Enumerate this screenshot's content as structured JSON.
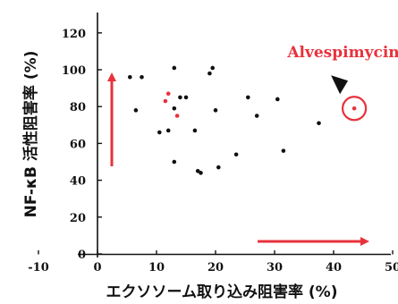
{
  "chart_data": {
    "type": "scatter",
    "xlabel": "エクソソーム取り込み阻害率 (%)",
    "ylabel": "NF-κB 活性阻害率 (%)",
    "xlim": [
      -15,
      50
    ],
    "ylim": [
      -5,
      130
    ],
    "xticks": [
      -10,
      0,
      10,
      20,
      30,
      40,
      50
    ],
    "yticks": [
      0,
      20,
      40,
      60,
      80,
      100,
      120
    ],
    "grid": false,
    "colors": {
      "black": "#111111",
      "red": "#e8323c"
    },
    "series": [
      {
        "color": "black",
        "points": [
          [
            5.5,
            96
          ],
          [
            6.5,
            78
          ],
          [
            7.5,
            96
          ],
          [
            10.5,
            66
          ],
          [
            12,
            67
          ],
          [
            13,
            101
          ],
          [
            13,
            79
          ],
          [
            13,
            50
          ],
          [
            14,
            85
          ],
          [
            15,
            85
          ],
          [
            16.5,
            67
          ],
          [
            17,
            45
          ],
          [
            17.5,
            44
          ],
          [
            19,
            98
          ],
          [
            19.5,
            101
          ],
          [
            20,
            78
          ],
          [
            20.5,
            47
          ],
          [
            23.5,
            54
          ],
          [
            25.5,
            85
          ],
          [
            27,
            75
          ],
          [
            30.5,
            84
          ],
          [
            31.5,
            56
          ],
          [
            37.5,
            71
          ]
        ]
      },
      {
        "color": "red",
        "points": [
          [
            11.5,
            83
          ],
          [
            12,
            87
          ],
          [
            13.5,
            75
          ]
        ]
      },
      {
        "color": "red",
        "points": [
          [
            43.5,
            79
          ]
        ]
      }
    ],
    "annotations": [
      {
        "text": "Alvespimycin",
        "x": 43.5,
        "y": 79,
        "color": "#e8323c"
      }
    ],
    "arrows": [
      {
        "direction": "up",
        "color": "#e8323c"
      },
      {
        "direction": "right",
        "color": "#e8323c"
      }
    ]
  }
}
